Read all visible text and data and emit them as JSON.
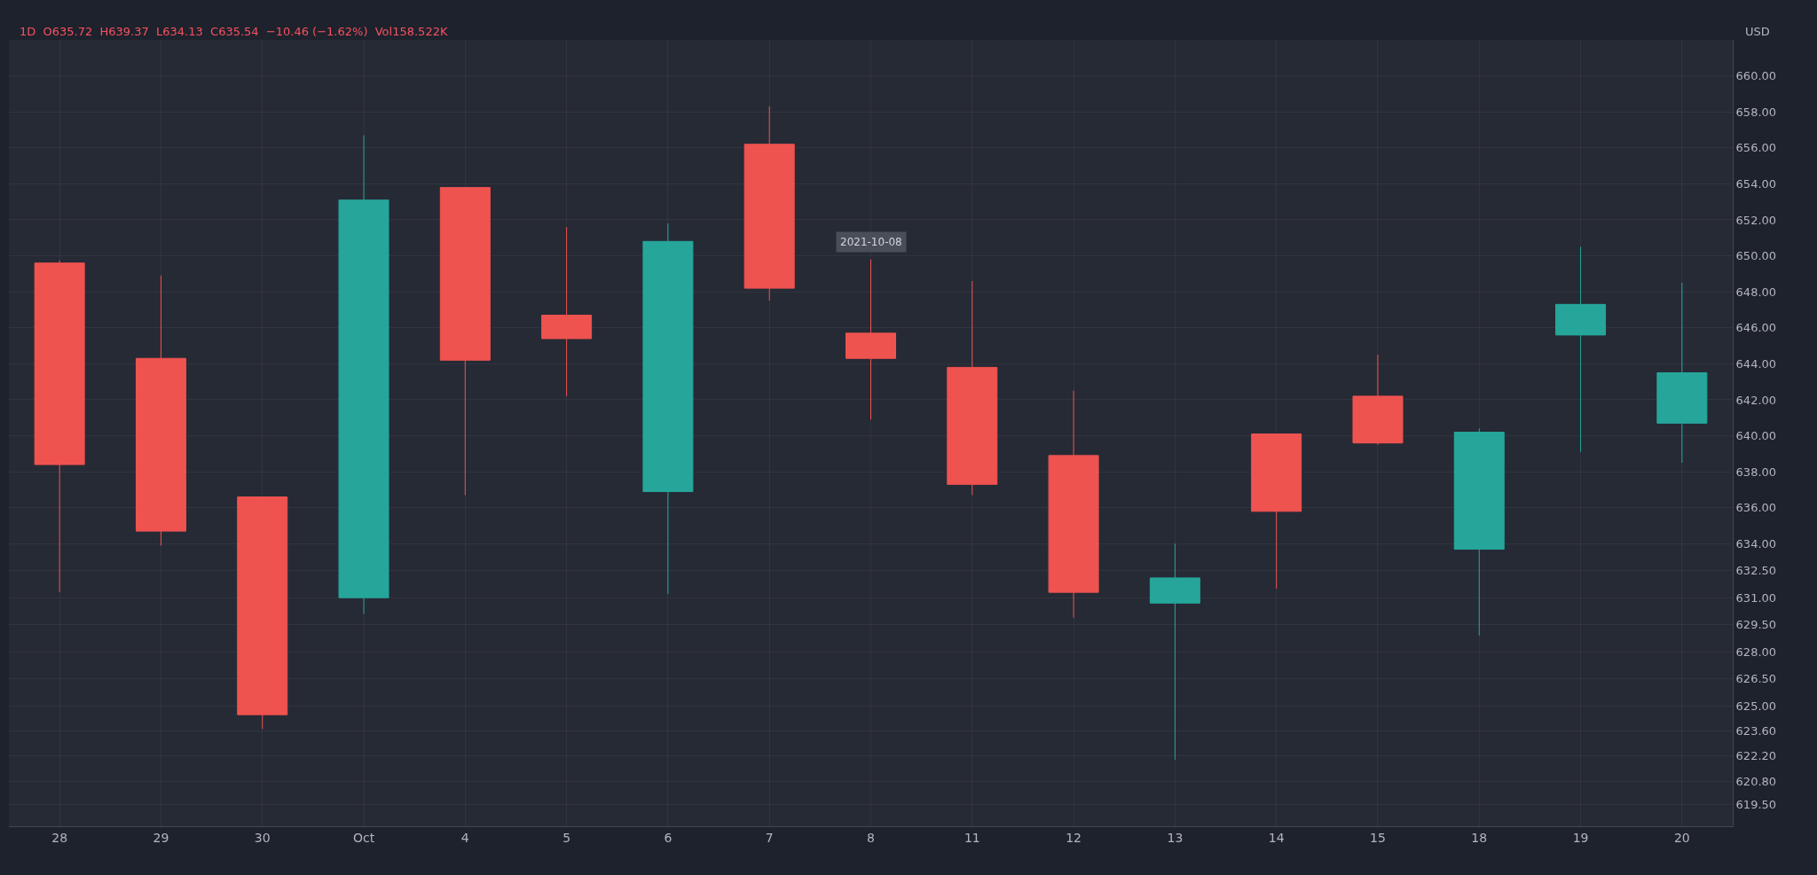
{
  "chart_data": {
    "type": "candlestick",
    "categories": [
      "28",
      "29",
      "30",
      "Oct",
      "4",
      "5",
      "6",
      "7",
      "8",
      "11",
      "12",
      "13",
      "14",
      "15",
      "18",
      "19",
      "20"
    ],
    "ohlc": [
      [
        649.6,
        649.75,
        631.3,
        638.4
      ],
      [
        644.3,
        648.9,
        633.9,
        634.7
      ],
      [
        636.6,
        636.6,
        623.7,
        624.5
      ],
      [
        631.0,
        656.7,
        630.1,
        653.1
      ],
      [
        653.8,
        653.8,
        636.7,
        644.2
      ],
      [
        646.7,
        651.6,
        642.2,
        645.4
      ],
      [
        636.9,
        651.8,
        631.2,
        650.8
      ],
      [
        656.2,
        658.3,
        647.5,
        648.2
      ],
      [
        645.7,
        649.8,
        640.9,
        644.3
      ],
      [
        643.8,
        648.6,
        636.7,
        637.3
      ],
      [
        638.9,
        642.5,
        629.9,
        631.3
      ],
      [
        630.7,
        634.0,
        622.0,
        632.1
      ],
      [
        640.1,
        640.1,
        631.5,
        635.8
      ],
      [
        642.2,
        644.5,
        639.5,
        639.6
      ],
      [
        633.7,
        640.4,
        628.9,
        640.2
      ],
      [
        645.6,
        650.5,
        639.1,
        647.3
      ],
      [
        640.7,
        648.5,
        638.5,
        643.5
      ]
    ],
    "colors": [
      "#ef5350",
      "#ef5350",
      "#ef5350",
      "#26a69a",
      "#ef5350",
      "#ef5350",
      "#26a69a",
      "#ef5350",
      "#ef5350",
      "#ef5350",
      "#ef5350",
      "#26a69a",
      "#ef5350",
      "#ef5350",
      "#26a69a",
      "#26a69a",
      "#26a69a"
    ],
    "ylim": [
      618.3,
      662.0
    ],
    "yticks": [
      {
        "value": 619.5,
        "label": "619.50"
      },
      {
        "value": 620.8,
        "label": "620.80"
      },
      {
        "value": 622.2,
        "label": "622.20"
      },
      {
        "value": 623.6,
        "label": "623.60"
      },
      {
        "value": 625,
        "label": "625.00"
      },
      {
        "value": 626.5,
        "label": "626.50"
      },
      {
        "value": 628,
        "label": "628.00"
      },
      {
        "value": 629.5,
        "label": "629.50"
      },
      {
        "value": 631,
        "label": "631.00"
      },
      {
        "value": 632.5,
        "label": "632.50"
      },
      {
        "value": 634,
        "label": "634.00"
      },
      {
        "value": 636,
        "label": "636.00"
      },
      {
        "value": 638,
        "label": "638.00"
      },
      {
        "value": 640,
        "label": "640.00"
      },
      {
        "value": 642,
        "label": "642.00"
      },
      {
        "value": 644,
        "label": "644.00"
      },
      {
        "value": 646,
        "label": "646.00"
      },
      {
        "value": 648,
        "label": "648.00"
      },
      {
        "value": 650,
        "label": "650.00"
      },
      {
        "value": 652,
        "label": "652.00"
      },
      {
        "value": 654,
        "label": "654.00"
      },
      {
        "value": 656,
        "label": "656.00"
      },
      {
        "value": 658,
        "label": "658.00"
      },
      {
        "value": 660,
        "label": "660.00"
      }
    ],
    "ylabel": "USD",
    "title": "1D  O635.72  H639.37  L634.13  C635.54  −10.46 (−1.62%)  Vol158.522K",
    "annotations": [
      {
        "text": "2021-10-08",
        "x": "8",
        "y": 649.8
      }
    ],
    "grid": true,
    "legend": false
  }
}
